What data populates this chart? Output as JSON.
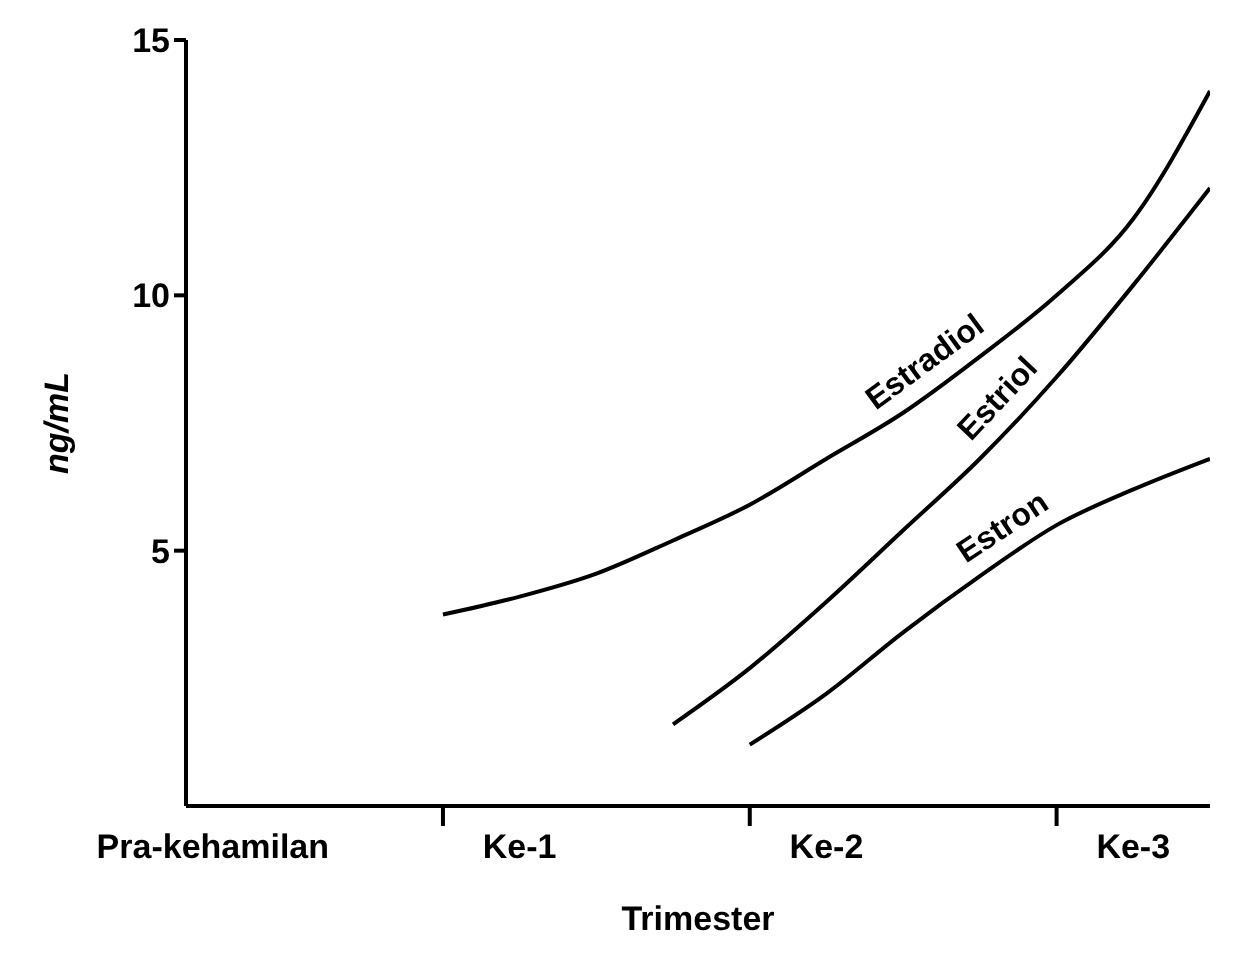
{
  "chart_data": {
    "type": "line",
    "xlabel": "Trimester",
    "ylabel": "ng/mL",
    "categories": [
      "Pra-kehamilan",
      null,
      null,
      null,
      "Ke-1",
      null,
      null,
      null,
      "Ke-2",
      null,
      null,
      null,
      "Ke-3",
      null
    ],
    "ylim": [
      0,
      15
    ],
    "yticks": [
      5,
      10,
      15
    ],
    "marker": "none",
    "line_style": "solid",
    "series": [
      {
        "name": "Estradiol",
        "color": "#000000",
        "values": [
          null,
          null,
          null,
          3.75,
          4.1,
          4.55,
          5.2,
          5.9,
          6.8,
          7.7,
          8.8,
          10.0,
          11.5,
          14.0
        ]
      },
      {
        "name": "Estriol",
        "color": "#000000",
        "values": [
          null,
          null,
          null,
          null,
          null,
          null,
          1.6,
          2.7,
          4.0,
          5.4,
          6.8,
          8.4,
          10.2,
          12.1
        ]
      },
      {
        "name": "Estron",
        "color": "#000000",
        "values": [
          null,
          null,
          null,
          null,
          null,
          null,
          null,
          1.2,
          2.2,
          3.4,
          4.5,
          5.5,
          6.2,
          6.8
        ]
      }
    ]
  }
}
